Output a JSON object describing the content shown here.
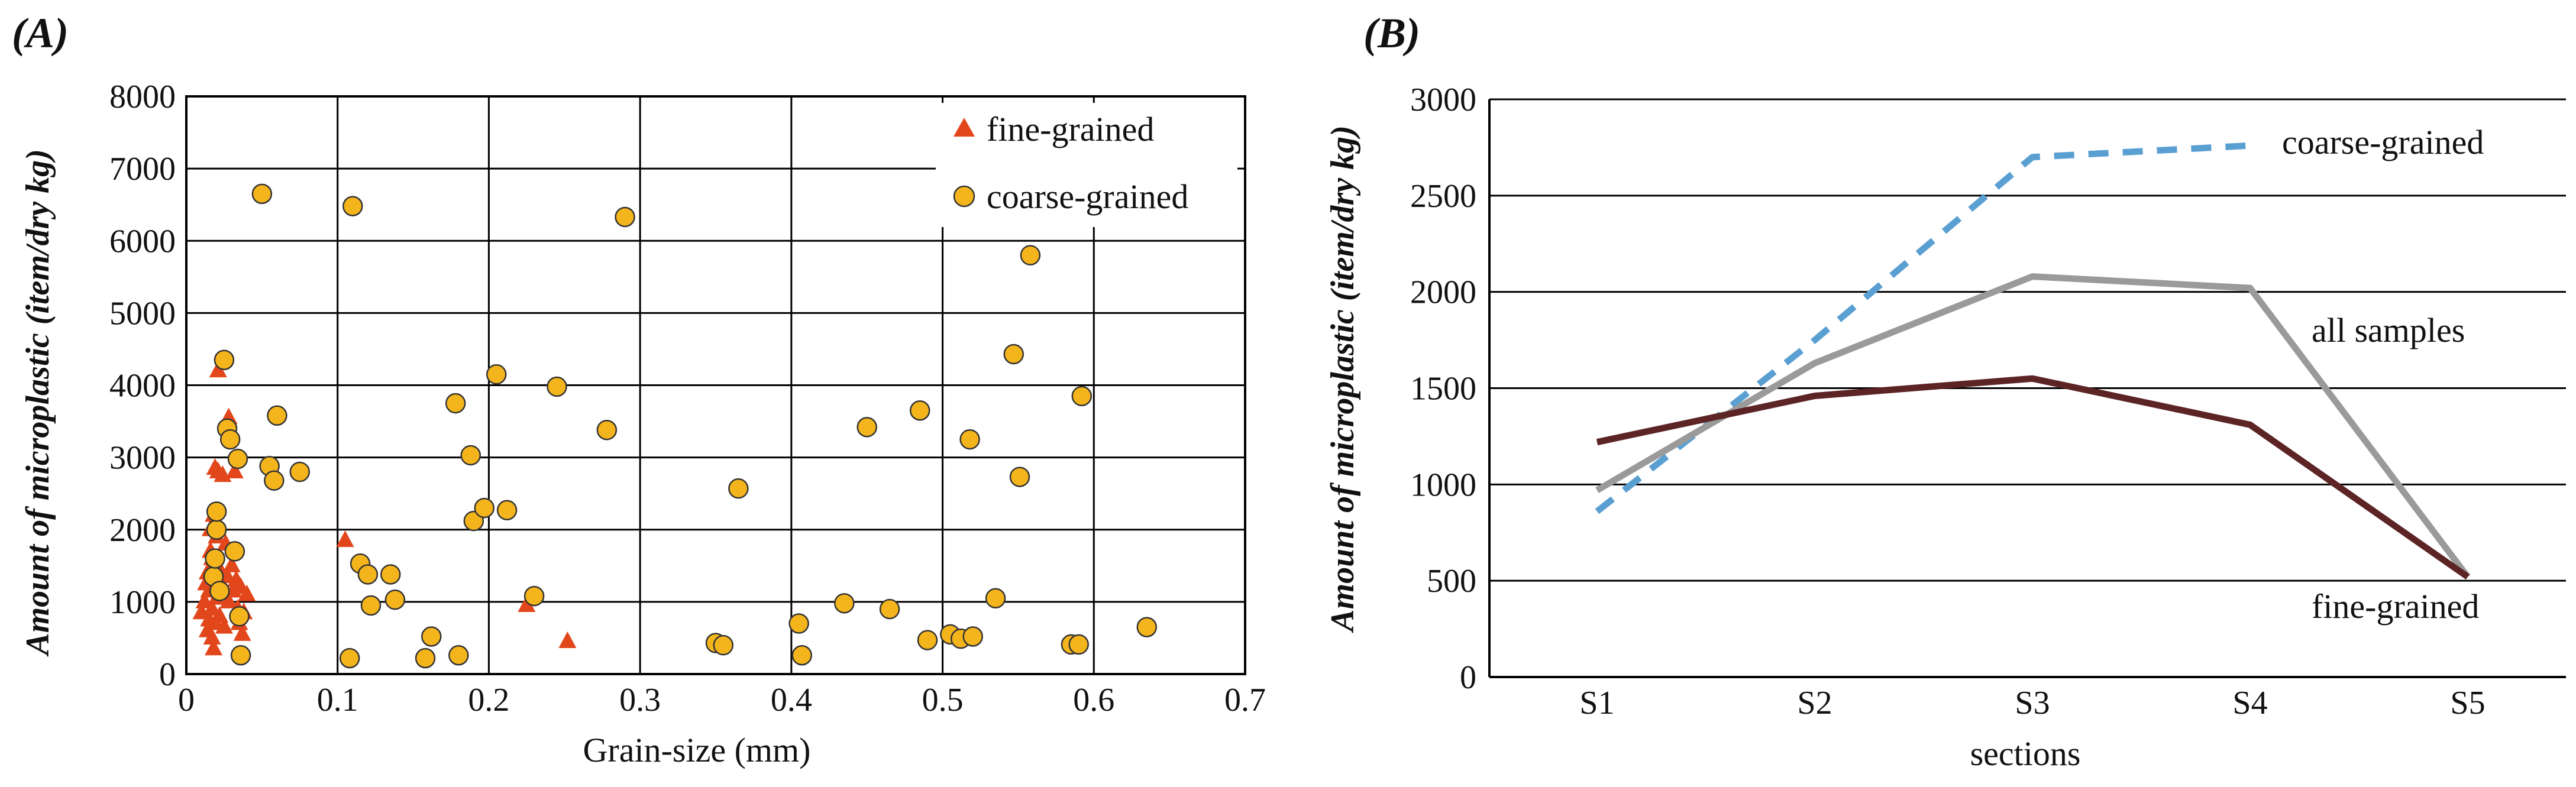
{
  "chart_data": [
    {
      "type": "scatter",
      "panel_label": "(A)",
      "title": "",
      "xlabel": "Grain-size (mm)",
      "ylabel": "Amount of microplastic  (item/dry kg)",
      "xlim": [
        0,
        0.7
      ],
      "ylim": [
        0,
        8000
      ],
      "x_ticks": [
        0,
        0.1,
        0.2,
        0.3,
        0.4,
        0.5,
        0.6,
        0.7
      ],
      "x_tick_labels": [
        "0",
        "0.1",
        "0.2",
        "0.3",
        "0.4",
        "0.5",
        "0.6",
        "0.7"
      ],
      "y_ticks": [
        0,
        1000,
        2000,
        3000,
        4000,
        5000,
        6000,
        7000,
        8000
      ],
      "y_tick_labels": [
        "0",
        "1000",
        "2000",
        "3000",
        "4000",
        "5000",
        "6000",
        "7000",
        "8000"
      ],
      "grid": true,
      "legend_position": "top-right",
      "series": [
        {
          "name": "fine-grained",
          "marker": "triangle",
          "color": "#e2461b",
          "points": [
            [
              0.01,
              850
            ],
            [
              0.012,
              1000
            ],
            [
              0.013,
              1250
            ],
            [
              0.014,
              600
            ],
            [
              0.014,
              1400
            ],
            [
              0.015,
              750
            ],
            [
              0.015,
              1150
            ],
            [
              0.016,
              1700
            ],
            [
              0.016,
              2000
            ],
            [
              0.017,
              500
            ],
            [
              0.017,
              900
            ],
            [
              0.017,
              1600
            ],
            [
              0.018,
              350
            ],
            [
              0.018,
              1300
            ],
            [
              0.018,
              2200
            ],
            [
              0.019,
              700
            ],
            [
              0.019,
              2850
            ],
            [
              0.02,
              1050
            ],
            [
              0.02,
              1900
            ],
            [
              0.021,
              4200
            ],
            [
              0.021,
              2800
            ],
            [
              0.022,
              800
            ],
            [
              0.022,
              1450
            ],
            [
              0.023,
              1200
            ],
            [
              0.024,
              2750
            ],
            [
              0.025,
              650
            ],
            [
              0.026,
              1800
            ],
            [
              0.027,
              1350
            ],
            [
              0.028,
              3550
            ],
            [
              0.028,
              1000
            ],
            [
              0.03,
              1500
            ],
            [
              0.031,
              1150
            ],
            [
              0.032,
              2800
            ],
            [
              0.033,
              1300
            ],
            [
              0.034,
              900
            ],
            [
              0.035,
              700
            ],
            [
              0.036,
              1200
            ],
            [
              0.037,
              550
            ],
            [
              0.038,
              850
            ],
            [
              0.04,
              1100
            ],
            [
              0.105,
              1850
            ],
            [
              0.225,
              950
            ],
            [
              0.252,
              450
            ]
          ]
        },
        {
          "name": "coarse-grained",
          "marker": "circle",
          "color": "#f4b51c",
          "points": [
            [
              0.018,
              1350
            ],
            [
              0.019,
              1600
            ],
            [
              0.02,
              2000
            ],
            [
              0.02,
              2250
            ],
            [
              0.022,
              1150
            ],
            [
              0.025,
              4350
            ],
            [
              0.027,
              3400
            ],
            [
              0.029,
              3250
            ],
            [
              0.032,
              1700
            ],
            [
              0.034,
              2980
            ],
            [
              0.035,
              800
            ],
            [
              0.036,
              260
            ],
            [
              0.05,
              6650
            ],
            [
              0.055,
              2880
            ],
            [
              0.058,
              2680
            ],
            [
              0.06,
              3580
            ],
            [
              0.075,
              2800
            ],
            [
              0.108,
              220
            ],
            [
              0.11,
              6480
            ],
            [
              0.115,
              1530
            ],
            [
              0.12,
              1380
            ],
            [
              0.122,
              950
            ],
            [
              0.135,
              1380
            ],
            [
              0.138,
              1030
            ],
            [
              0.158,
              220
            ],
            [
              0.162,
              520
            ],
            [
              0.178,
              3750
            ],
            [
              0.18,
              260
            ],
            [
              0.188,
              3030
            ],
            [
              0.19,
              2120
            ],
            [
              0.197,
              2300
            ],
            [
              0.205,
              4150
            ],
            [
              0.212,
              2270
            ],
            [
              0.23,
              1080
            ],
            [
              0.245,
              3980
            ],
            [
              0.278,
              3380
            ],
            [
              0.29,
              6330
            ],
            [
              0.35,
              430
            ],
            [
              0.355,
              400
            ],
            [
              0.365,
              2570
            ],
            [
              0.405,
              700
            ],
            [
              0.407,
              260
            ],
            [
              0.435,
              980
            ],
            [
              0.45,
              3420
            ],
            [
              0.465,
              900
            ],
            [
              0.485,
              3650
            ],
            [
              0.49,
              470
            ],
            [
              0.505,
              550
            ],
            [
              0.512,
              490
            ],
            [
              0.518,
              3250
            ],
            [
              0.52,
              520
            ],
            [
              0.535,
              1050
            ],
            [
              0.547,
              4430
            ],
            [
              0.551,
              2730
            ],
            [
              0.558,
              5800
            ],
            [
              0.585,
              410
            ],
            [
              0.59,
              410
            ],
            [
              0.592,
              3850
            ],
            [
              0.635,
              650
            ]
          ]
        }
      ]
    },
    {
      "type": "line",
      "panel_label": "(B)",
      "title": "",
      "xlabel": "sections",
      "ylabel": "Amount of microplastic  (item/dry kg)",
      "categories": [
        "S1",
        "S2",
        "S3",
        "S4",
        "S5"
      ],
      "ylim": [
        0,
        3000
      ],
      "y_ticks": [
        0,
        500,
        1000,
        1500,
        2000,
        2500,
        3000
      ],
      "y_tick_labels": [
        "0",
        "500",
        "1000",
        "1500",
        "2000",
        "2500",
        "3000"
      ],
      "grid": true,
      "series": [
        {
          "name": "coarse-grained",
          "style": "dashed",
          "color": "#5a9fd2",
          "values": [
            860,
            1750,
            2700,
            2760,
            null
          ]
        },
        {
          "name": "all samples",
          "style": "solid",
          "color": "#9a9a9a",
          "values": [
            970,
            1630,
            2080,
            2020,
            520
          ]
        },
        {
          "name": "fine-grained",
          "style": "solid",
          "color": "#5c2424",
          "values": [
            1220,
            1460,
            1550,
            1310,
            520
          ]
        }
      ]
    }
  ]
}
